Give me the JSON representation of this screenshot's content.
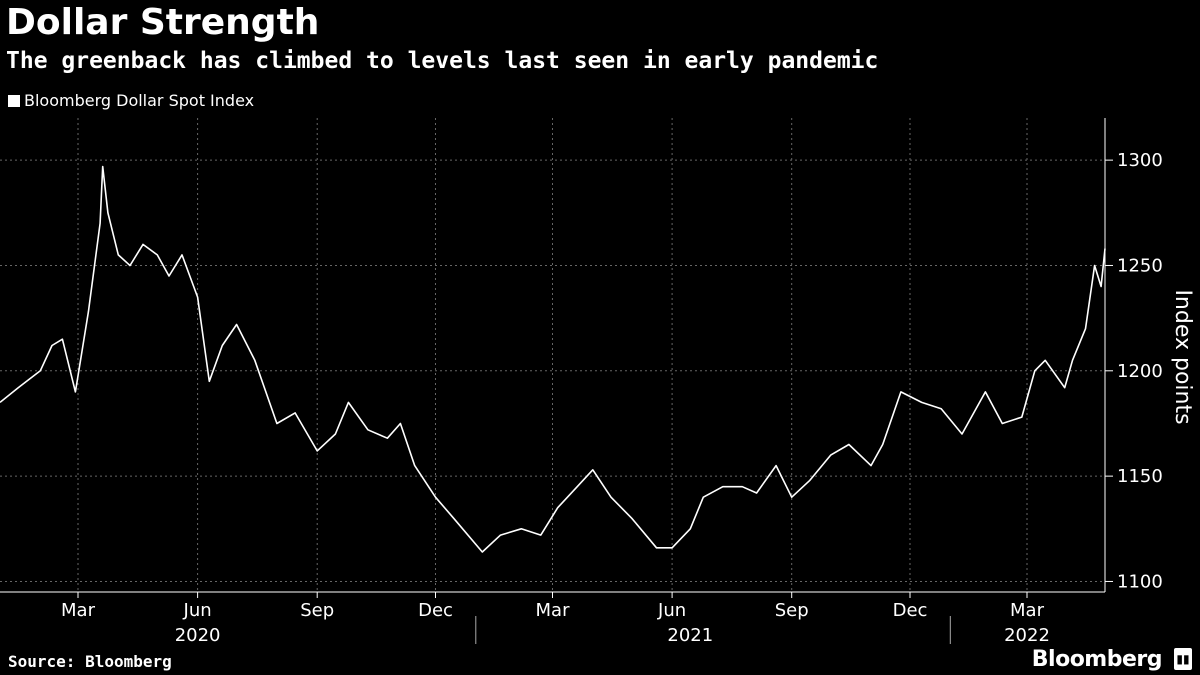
{
  "header": {
    "title": "Dollar Strength",
    "subtitle": "The greenback has climbed to levels last seen in early pandemic"
  },
  "legend": {
    "label": "Bloomberg Dollar Spot Index"
  },
  "footer": {
    "source": "Source: Bloomberg",
    "brand": "Bloomberg"
  },
  "colors": {
    "background": "#000000",
    "line": "#ffffff",
    "grid": "#666666"
  },
  "chart_data": {
    "type": "line",
    "title": "Dollar Strength",
    "subtitle": "The greenback has climbed to levels last seen in early pandemic",
    "ylabel": "Index points",
    "xlabel": "",
    "ylim": [
      1095,
      1320
    ],
    "xlim": [
      "2020-01-01",
      "2022-04-30"
    ],
    "yticks": [
      1100,
      1150,
      1200,
      1250,
      1300
    ],
    "grid": true,
    "legend_position": "top-left",
    "month_ticks": [
      {
        "date": "2020-03-01",
        "label": "Mar"
      },
      {
        "date": "2020-06-01",
        "label": "Jun"
      },
      {
        "date": "2020-09-01",
        "label": "Sep"
      },
      {
        "date": "2020-12-01",
        "label": "Dec"
      },
      {
        "date": "2021-03-01",
        "label": "Mar"
      },
      {
        "date": "2021-06-01",
        "label": "Jun"
      },
      {
        "date": "2021-09-01",
        "label": "Sep"
      },
      {
        "date": "2021-12-01",
        "label": "Dec"
      },
      {
        "date": "2022-03-01",
        "label": "Mar"
      }
    ],
    "year_labels": [
      {
        "date": "2020-06-01",
        "label": "2020"
      },
      {
        "date": "2021-06-15",
        "label": "2021"
      },
      {
        "date": "2022-03-01",
        "label": "2022"
      }
    ],
    "year_separators": [
      "2021-01-01",
      "2022-01-01"
    ],
    "series": [
      {
        "name": "Bloomberg Dollar Spot Index",
        "points": [
          [
            "2020-01-01",
            1185
          ],
          [
            "2020-01-15",
            1192
          ],
          [
            "2020-02-01",
            1200
          ],
          [
            "2020-02-10",
            1212
          ],
          [
            "2020-02-18",
            1215
          ],
          [
            "2020-02-28",
            1190
          ],
          [
            "2020-03-09",
            1228
          ],
          [
            "2020-03-18",
            1270
          ],
          [
            "2020-03-20",
            1297
          ],
          [
            "2020-03-24",
            1275
          ],
          [
            "2020-04-01",
            1255
          ],
          [
            "2020-04-10",
            1250
          ],
          [
            "2020-04-20",
            1260
          ],
          [
            "2020-05-01",
            1255
          ],
          [
            "2020-05-10",
            1245
          ],
          [
            "2020-05-20",
            1255
          ],
          [
            "2020-06-01",
            1235
          ],
          [
            "2020-06-10",
            1195
          ],
          [
            "2020-06-20",
            1212
          ],
          [
            "2020-07-01",
            1222
          ],
          [
            "2020-07-15",
            1205
          ],
          [
            "2020-08-01",
            1175
          ],
          [
            "2020-08-15",
            1180
          ],
          [
            "2020-09-01",
            1162
          ],
          [
            "2020-09-15",
            1170
          ],
          [
            "2020-09-25",
            1185
          ],
          [
            "2020-10-10",
            1172
          ],
          [
            "2020-10-25",
            1168
          ],
          [
            "2020-11-04",
            1175
          ],
          [
            "2020-11-15",
            1155
          ],
          [
            "2020-12-01",
            1140
          ],
          [
            "2020-12-15",
            1130
          ],
          [
            "2021-01-06",
            1114
          ],
          [
            "2021-01-20",
            1122
          ],
          [
            "2021-02-05",
            1125
          ],
          [
            "2021-02-20",
            1122
          ],
          [
            "2021-03-05",
            1135
          ],
          [
            "2021-03-20",
            1145
          ],
          [
            "2021-04-01",
            1153
          ],
          [
            "2021-04-15",
            1140
          ],
          [
            "2021-05-01",
            1130
          ],
          [
            "2021-05-20",
            1116
          ],
          [
            "2021-06-01",
            1116
          ],
          [
            "2021-06-15",
            1125
          ],
          [
            "2021-06-25",
            1140
          ],
          [
            "2021-07-10",
            1145
          ],
          [
            "2021-07-25",
            1145
          ],
          [
            "2021-08-05",
            1142
          ],
          [
            "2021-08-20",
            1155
          ],
          [
            "2021-09-01",
            1140
          ],
          [
            "2021-09-15",
            1148
          ],
          [
            "2021-10-01",
            1160
          ],
          [
            "2021-10-15",
            1165
          ],
          [
            "2021-11-01",
            1155
          ],
          [
            "2021-11-10",
            1165
          ],
          [
            "2021-11-24",
            1190
          ],
          [
            "2021-12-10",
            1185
          ],
          [
            "2021-12-25",
            1182
          ],
          [
            "2022-01-10",
            1170
          ],
          [
            "2022-01-28",
            1190
          ],
          [
            "2022-02-10",
            1175
          ],
          [
            "2022-02-25",
            1178
          ],
          [
            "2022-03-07",
            1200
          ],
          [
            "2022-03-15",
            1205
          ],
          [
            "2022-03-30",
            1192
          ],
          [
            "2022-04-05",
            1205
          ],
          [
            "2022-04-15",
            1220
          ],
          [
            "2022-04-22",
            1250
          ],
          [
            "2022-04-27",
            1240
          ],
          [
            "2022-04-30",
            1258
          ]
        ]
      }
    ]
  }
}
